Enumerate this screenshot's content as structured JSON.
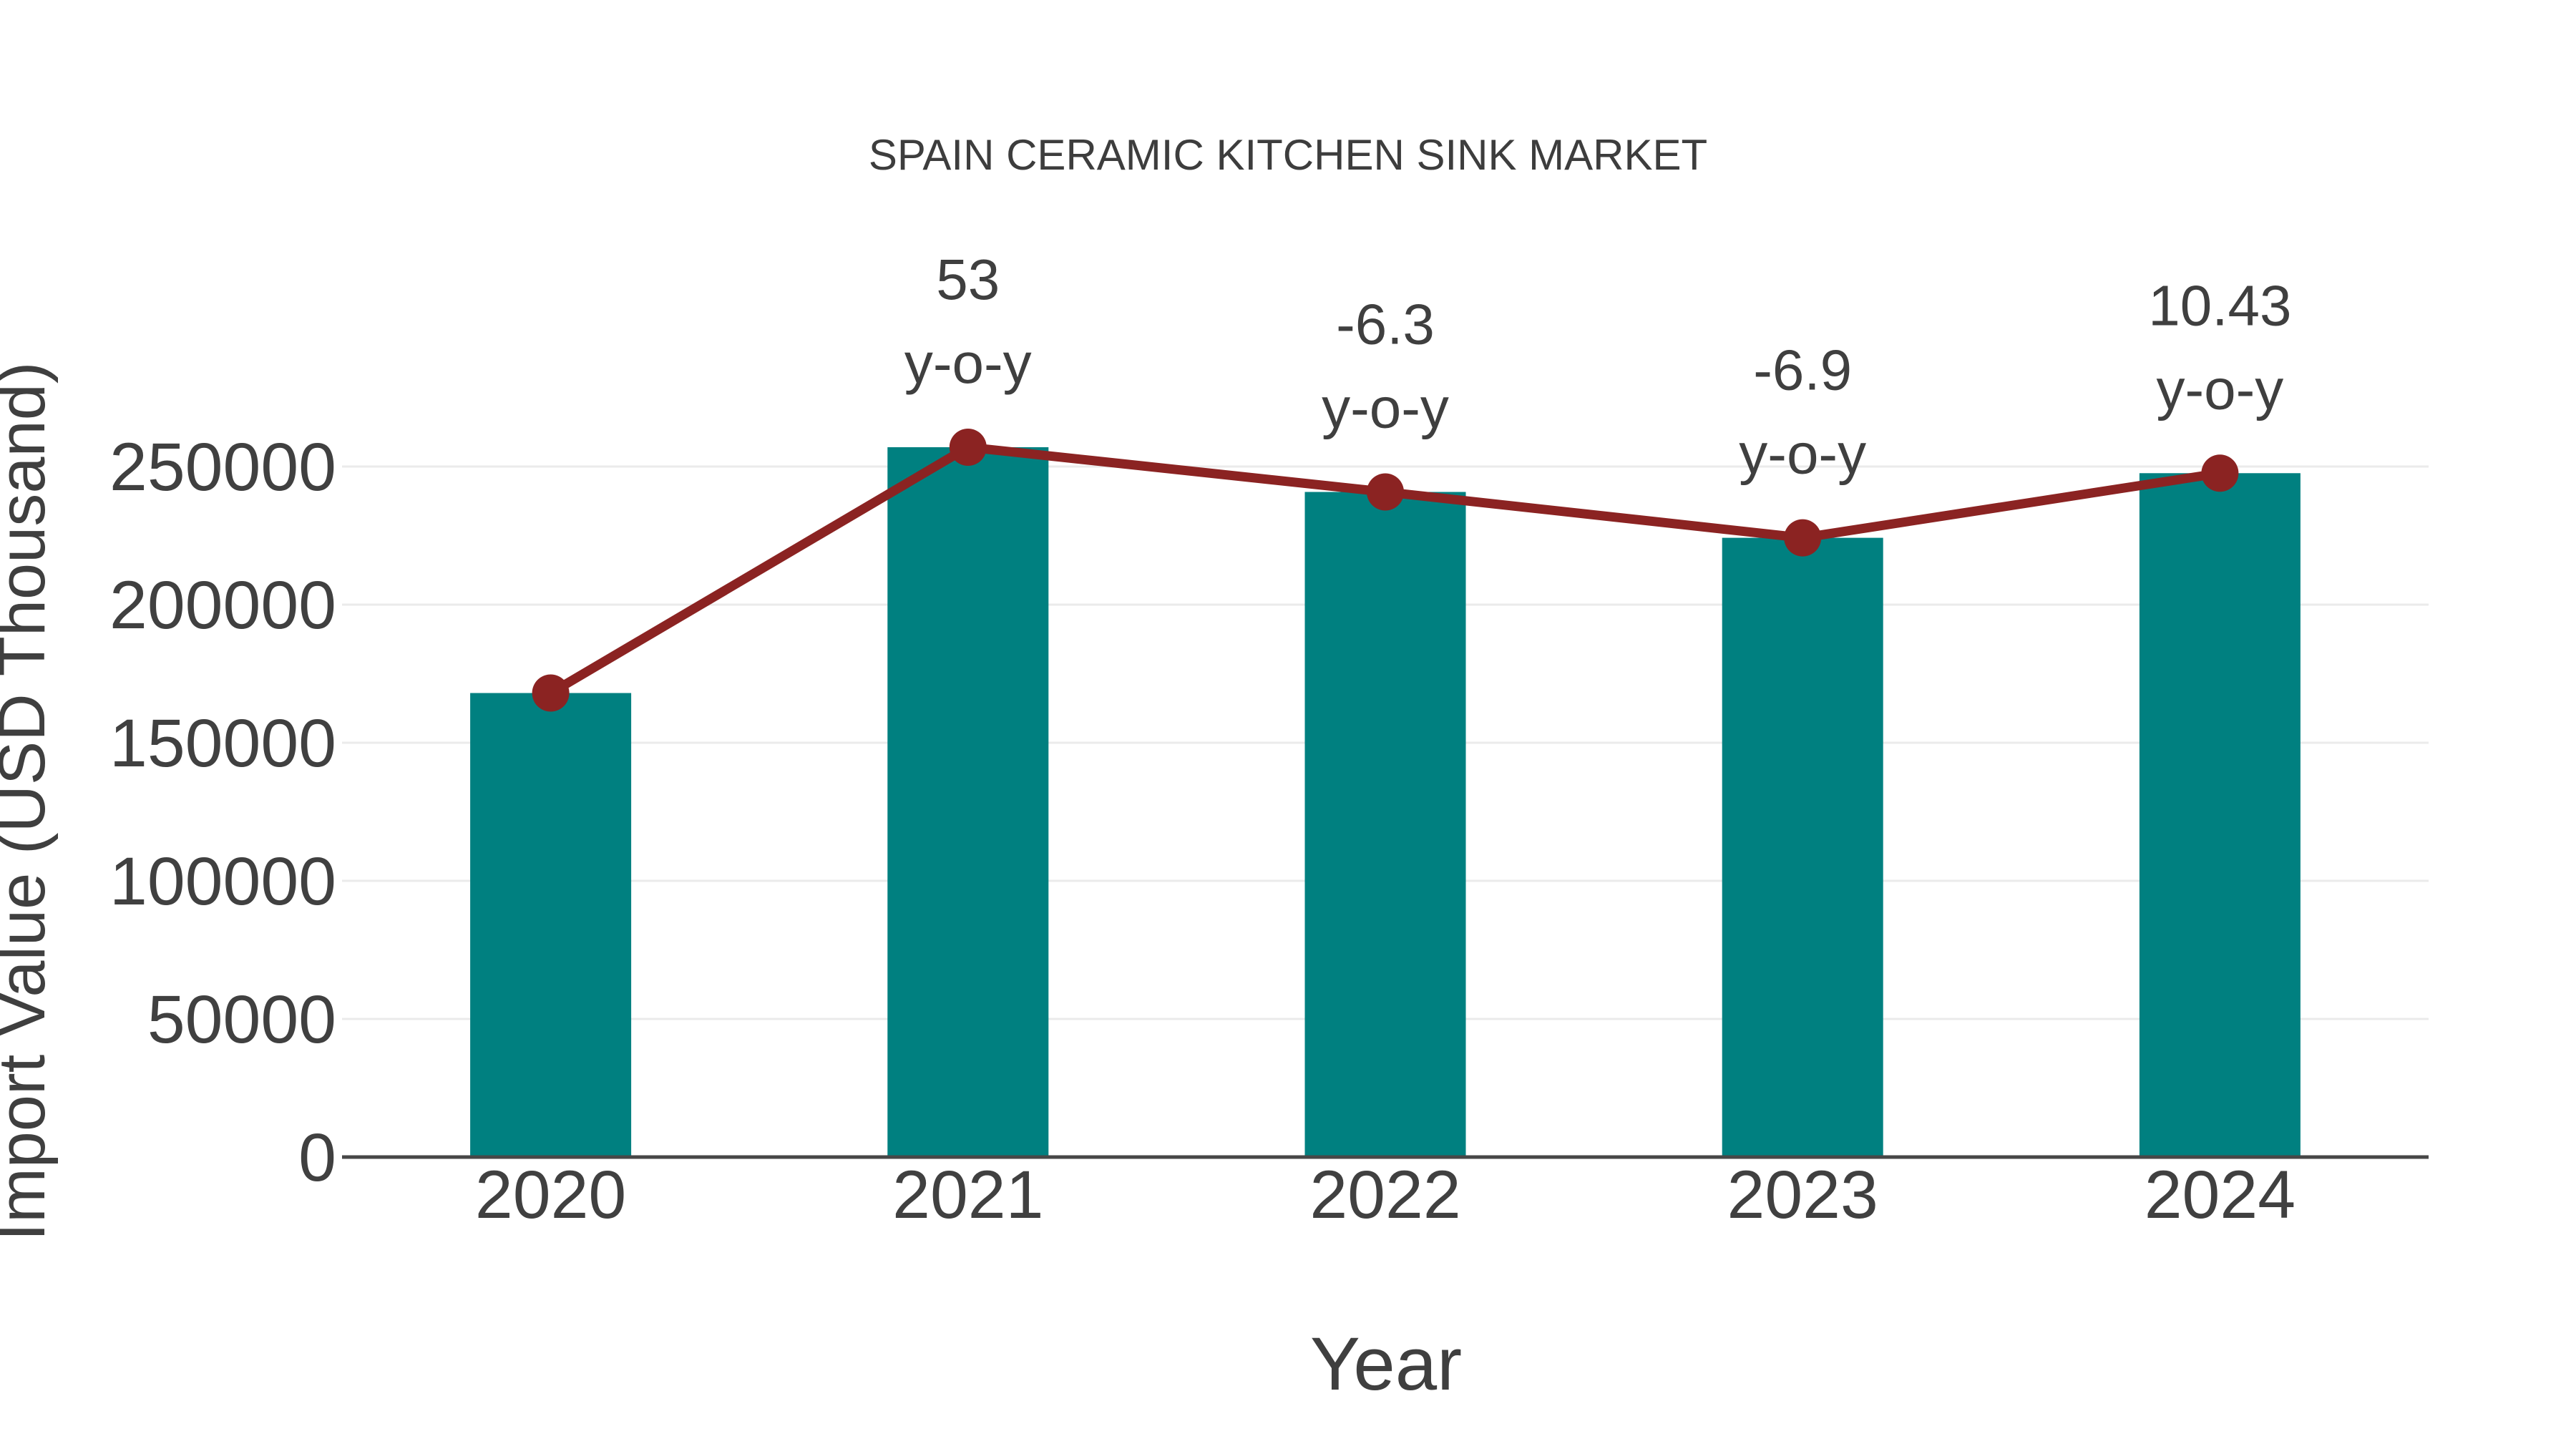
{
  "chart_data": {
    "type": "bar",
    "title": "SPAIN CERAMIC KITCHEN SINK MARKET",
    "xlabel": "Year",
    "ylabel": "Import Value (USD Thousand)",
    "categories": [
      "2020",
      "2021",
      "2022",
      "2023",
      "2024"
    ],
    "series": [
      {
        "name": "Import Value",
        "type": "bar",
        "color": "#008080",
        "values": [
          168000,
          257000,
          240800,
          224200,
          247600
        ]
      },
      {
        "name": "Import Value trend",
        "type": "line",
        "color": "#8b2322",
        "marker": "circle",
        "values": [
          168000,
          257000,
          240800,
          224200,
          247600
        ]
      }
    ],
    "annotations": [
      {
        "category": "2021",
        "value": "53",
        "suffix": "y-o-y"
      },
      {
        "category": "2022",
        "value": "-6.3",
        "suffix": "y-o-y"
      },
      {
        "category": "2023",
        "value": "-6.9",
        "suffix": "y-o-y"
      },
      {
        "category": "2024",
        "value": "10.43",
        "suffix": "y-o-y"
      }
    ],
    "yticks": [
      0,
      50000,
      100000,
      150000,
      200000,
      250000
    ],
    "ylim": [
      0,
      260000
    ],
    "grid": true,
    "legend": false,
    "colors": {
      "bar": "#008080",
      "line": "#8b2322",
      "text": "#3f3f3f",
      "grid": "#ebebeb",
      "axis": "#474747",
      "background": "#ffffff"
    }
  }
}
